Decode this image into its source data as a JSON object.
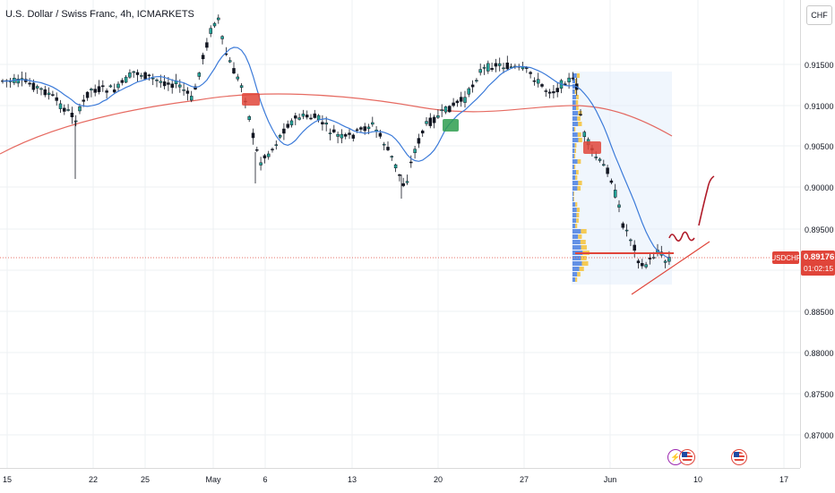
{
  "header": {
    "title": "U.S. Dollar / Swiss Franc, 4h, ICMARKETS"
  },
  "price_axis": {
    "currency": "CHF",
    "labels": [
      "0.91500",
      "0.91000",
      "0.90500",
      "0.90000",
      "0.89500",
      "0.88500",
      "0.88000",
      "0.87500",
      "0.87000"
    ]
  },
  "time_axis": {
    "labels": [
      "15",
      "22",
      "25",
      "May",
      "6",
      "13",
      "20",
      "27",
      "Jun",
      "10",
      "17"
    ]
  },
  "current_price": {
    "symbol": "USDCHF",
    "price": "0.89176",
    "countdown": "01:02:15"
  },
  "signals": [
    {
      "type": "sell",
      "color": "#e0453a"
    },
    {
      "type": "buy",
      "color": "#2e9e4f"
    },
    {
      "type": "sell",
      "color": "#e0453a"
    }
  ],
  "events": [
    {
      "icon": "lightning-icon"
    },
    {
      "icon": "us-flag-icon"
    },
    {
      "icon": "us-flag-icon"
    }
  ],
  "colors": {
    "up": "#26a69a",
    "down": "#ef5350",
    "candle": "#131722",
    "ma_fast": "#3c7bd9",
    "ma_slow": "#e0453a",
    "accent": "#e0453a"
  }
}
